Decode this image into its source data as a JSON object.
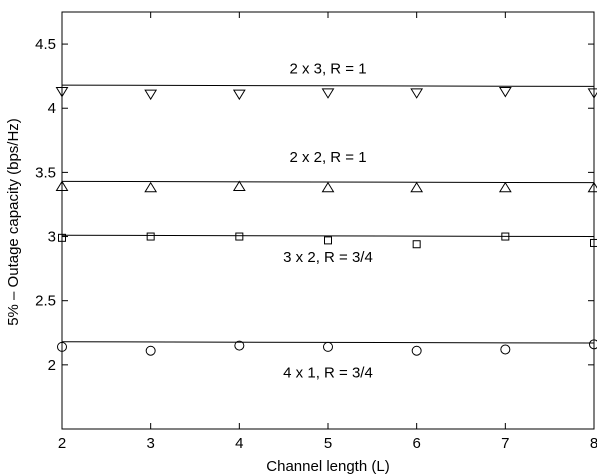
{
  "chart_data": {
    "type": "scatter",
    "title": "",
    "xlabel": "Channel length (L)",
    "ylabel": "5% – Outage capacity (bps/Hz)",
    "xlim": [
      2,
      8
    ],
    "ylim": [
      1.5,
      4.75
    ],
    "xticks": [
      "2",
      "3",
      "4",
      "5",
      "6",
      "7",
      "8"
    ],
    "yticks": [
      "2",
      "2.5",
      "3",
      "3.5",
      "4",
      "4.5"
    ],
    "grid": false,
    "legend": "none",
    "x": [
      2,
      3,
      4,
      5,
      6,
      7,
      8
    ],
    "series": [
      {
        "marker": "triangle-down",
        "values": [
          4.13,
          4.11,
          4.11,
          4.12,
          4.12,
          4.13,
          4.12
        ],
        "fit_line": [
          4.18,
          4.17
        ]
      },
      {
        "marker": "triangle-up",
        "values": [
          3.39,
          3.38,
          3.39,
          3.38,
          3.38,
          3.38,
          3.38
        ],
        "fit_line": [
          3.43,
          3.42
        ]
      },
      {
        "marker": "square",
        "values": [
          2.99,
          3.0,
          3.0,
          2.97,
          2.94,
          3.0,
          2.95
        ],
        "fit_line": [
          3.01,
          3.0
        ]
      },
      {
        "marker": "circle",
        "values": [
          2.14,
          2.11,
          2.15,
          2.14,
          2.11,
          2.12,
          2.16
        ],
        "fit_line": [
          2.18,
          2.17
        ]
      }
    ],
    "annotations": [
      {
        "text": "2 x 3, R = 1",
        "x": 5,
        "y": 4.31
      },
      {
        "text": "2 x 2, R = 1",
        "x": 5,
        "y": 3.62
      },
      {
        "text": "3 x 2, R = 3/4",
        "x": 5,
        "y": 2.84
      },
      {
        "text": "4 x 1, R = 3/4",
        "x": 5,
        "y": 1.94
      }
    ]
  }
}
